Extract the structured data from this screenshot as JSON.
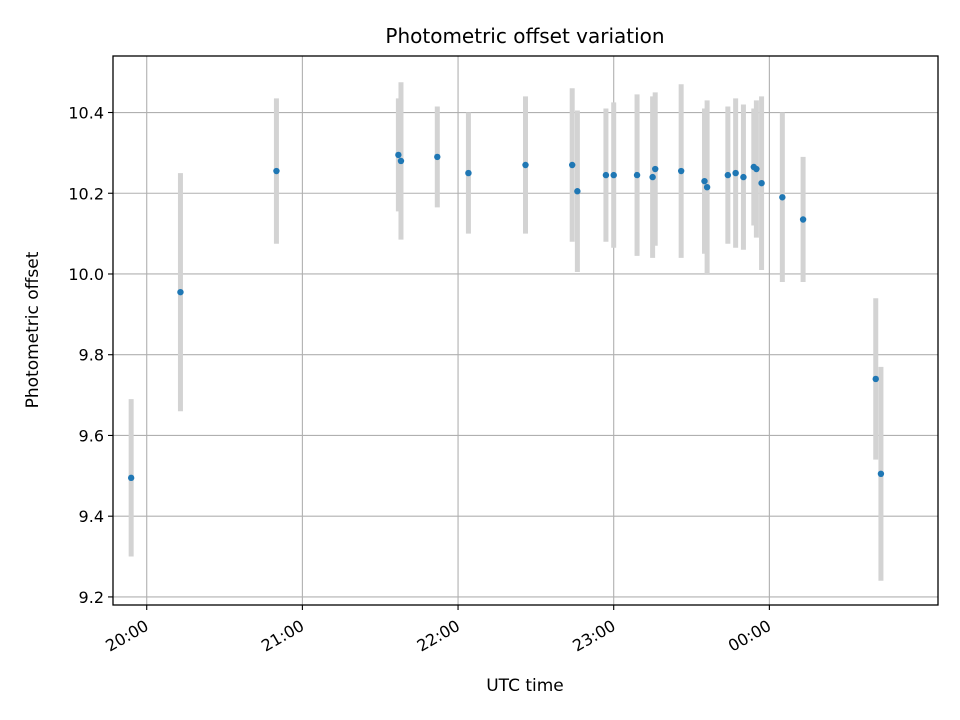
{
  "chart_data": {
    "type": "scatter",
    "title": "Photometric offset variation",
    "xlabel": "UTC time",
    "ylabel": "Photometric offset",
    "grid": true,
    "xlim": [
      "19:47",
      "01:05"
    ],
    "ylim": [
      9.18,
      10.54
    ],
    "xticks": [
      "20:00",
      "21:00",
      "22:00",
      "23:00",
      "00:00"
    ],
    "yticks": [
      9.2,
      9.4,
      9.6,
      9.8,
      10.0,
      10.2,
      10.4
    ],
    "colors": {
      "point": "#1f77b4",
      "errorbar": "#d3d3d3",
      "grid": "#b0b0b0"
    },
    "series": [
      {
        "points": [
          {
            "x": "19:54",
            "y": 9.495,
            "err": 0.195
          },
          {
            "x": "20:13",
            "y": 9.955,
            "err": 0.295
          },
          {
            "x": "20:50",
            "y": 10.255,
            "err": 0.18
          },
          {
            "x": "21:37",
            "y": 10.295,
            "err": 0.14
          },
          {
            "x": "21:38",
            "y": 10.28,
            "err": 0.195
          },
          {
            "x": "21:52",
            "y": 10.29,
            "err": 0.125
          },
          {
            "x": "22:04",
            "y": 10.25,
            "err": 0.15
          },
          {
            "x": "22:26",
            "y": 10.27,
            "err": 0.17
          },
          {
            "x": "22:44",
            "y": 10.27,
            "err": 0.19
          },
          {
            "x": "22:46",
            "y": 10.205,
            "err": 0.2
          },
          {
            "x": "22:57",
            "y": 10.245,
            "err": 0.165
          },
          {
            "x": "23:00",
            "y": 10.245,
            "err": 0.18
          },
          {
            "x": "23:09",
            "y": 10.245,
            "err": 0.2
          },
          {
            "x": "23:15",
            "y": 10.24,
            "err": 0.2
          },
          {
            "x": "23:16",
            "y": 10.26,
            "err": 0.19
          },
          {
            "x": "23:26",
            "y": 10.255,
            "err": 0.215
          },
          {
            "x": "23:35",
            "y": 10.23,
            "err": 0.18
          },
          {
            "x": "23:36",
            "y": 10.215,
            "err": 0.215
          },
          {
            "x": "23:44",
            "y": 10.245,
            "err": 0.17
          },
          {
            "x": "23:47",
            "y": 10.25,
            "err": 0.185
          },
          {
            "x": "23:50",
            "y": 10.24,
            "err": 0.18
          },
          {
            "x": "23:54",
            "y": 10.265,
            "err": 0.145
          },
          {
            "x": "23:55",
            "y": 10.26,
            "err": 0.17
          },
          {
            "x": "23:57",
            "y": 10.225,
            "err": 0.215
          },
          {
            "x": "00:05",
            "y": 10.19,
            "err": 0.21
          },
          {
            "x": "00:13",
            "y": 10.135,
            "err": 0.155
          },
          {
            "x": "00:41",
            "y": 9.74,
            "err": 0.2
          },
          {
            "x": "00:43",
            "y": 9.505,
            "err": 0.265
          }
        ]
      }
    ]
  }
}
